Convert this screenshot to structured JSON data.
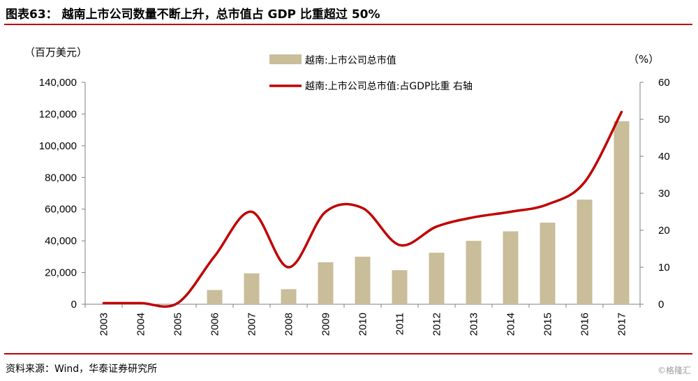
{
  "header": {
    "title": "图表63：  越南上市公司数量不断上升，总市值占 GDP 比重超过 50%"
  },
  "footer": {
    "source": "资料来源：Wind，华泰证券研究所",
    "watermark": "©格隆汇"
  },
  "chart_data": {
    "type": "bar+line",
    "categories": [
      "2003",
      "2004",
      "2005",
      "2006",
      "2007",
      "2008",
      "2009",
      "2010",
      "2011",
      "2012",
      "2013",
      "2014",
      "2015",
      "2016",
      "2017"
    ],
    "series": [
      {
        "name": "越南:上市公司总市值",
        "type": "bar",
        "axis": "left",
        "values": [
          0,
          0,
          0,
          9000,
          19500,
          9500,
          26500,
          30000,
          21500,
          32500,
          40000,
          46000,
          51500,
          66000,
          115500
        ],
        "color": "#c9bd9a"
      },
      {
        "name": "越南:上市公司总市值:占GDP比重 右轴",
        "type": "line",
        "axis": "right",
        "values": [
          0.3,
          0.3,
          0.3,
          13,
          25,
          10,
          25,
          26,
          16,
          21,
          23.5,
          25,
          27,
          33,
          52
        ],
        "color": "#c00000"
      }
    ],
    "y_left": {
      "unit_label": "（百万美元）",
      "min": 0,
      "max": 140000,
      "ticks": [
        "0",
        "20,000",
        "40,000",
        "60,000",
        "80,000",
        "100,000",
        "120,000",
        "140,000"
      ]
    },
    "y_right": {
      "unit_label": "（%）",
      "min": 0,
      "max": 60,
      "ticks": [
        "0",
        "10",
        "20",
        "30",
        "40",
        "50",
        "60"
      ]
    },
    "legend_position": "top"
  }
}
